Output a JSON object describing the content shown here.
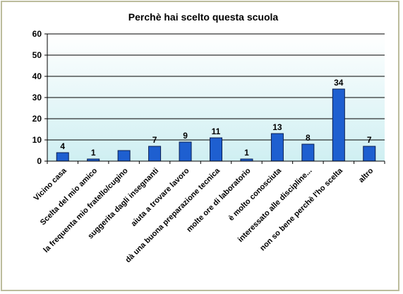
{
  "chart_data": {
    "type": "bar",
    "title": "Perchè hai scelto questa scuola",
    "categories": [
      "Vicino casa",
      "Scelta del mio amico",
      "la frequenta  mio fratello/cugino",
      "suggerita dagli insegnanti",
      "aiuta a trovare lavoro",
      "dà una buona preparazione tecnica",
      "molte ore di laboratorio",
      "è molto conosciuta",
      "interessato alle discipline...",
      "non so bene perchè  l'ho scelta",
      "altro"
    ],
    "values": [
      4,
      1,
      5,
      7,
      9,
      11,
      1,
      13,
      8,
      34,
      7
    ],
    "data_labels": [
      "4",
      "1",
      "",
      "7",
      "9",
      "11",
      "1",
      "13",
      "8",
      "34",
      "7"
    ],
    "ylim": [
      0,
      60
    ],
    "yticks": [
      0,
      10,
      20,
      30,
      40,
      50,
      60
    ],
    "grid": true,
    "legend": "none",
    "colors": {
      "bar_fill": "#1e5fd0",
      "bar_stroke": "#0a1e50",
      "plot_bg_top": "#ffffff",
      "plot_bg_bottom": "#cfeff2",
      "grid": "#000000",
      "frame": "#bcbc9c"
    }
  }
}
